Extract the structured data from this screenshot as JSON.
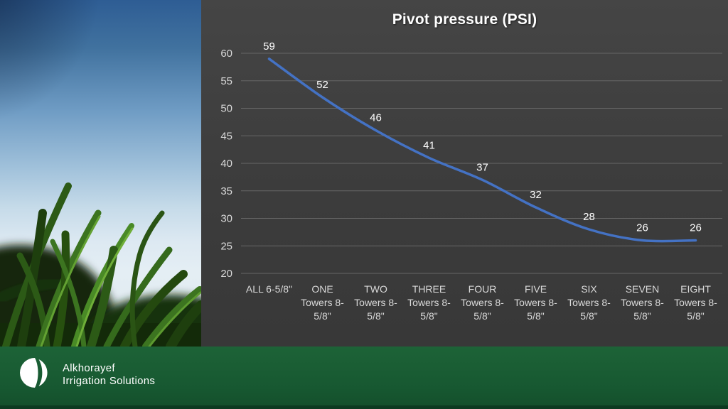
{
  "chart_data": {
    "type": "line",
    "title": "Pivot pressure (PSI)",
    "categories": [
      "ALL 6-5/8\"",
      "ONE Towers 8-5/8\"",
      "TWO Towers 8-5/8\"",
      "THREE Towers 8-5/8\"",
      "FOUR Towers 8-5/8\"",
      "FIVE Towers 8-5/8\"",
      "SIX Towers 8-5/8\"",
      "SEVEN Towers 8-5/8\"",
      "EIGHT Towers 8-5/8\""
    ],
    "category_lines": [
      [
        "ALL 6-5/8\""
      ],
      [
        "ONE",
        "Towers 8-",
        "5/8\""
      ],
      [
        "TWO",
        "Towers 8-",
        "5/8\""
      ],
      [
        "THREE",
        "Towers 8-",
        "5/8\""
      ],
      [
        "FOUR",
        "Towers 8-",
        "5/8\""
      ],
      [
        "FIVE",
        "Towers 8-",
        "5/8\""
      ],
      [
        "SIX",
        "Towers 8-",
        "5/8\""
      ],
      [
        "SEVEN",
        "Towers 8-",
        "5/8\""
      ],
      [
        "EIGHT",
        "Towers 8-",
        "5/8\""
      ]
    ],
    "values": [
      59,
      52,
      46,
      41,
      37,
      32,
      28,
      26,
      26
    ],
    "ylim": [
      20,
      60
    ],
    "yticks": [
      20,
      25,
      30,
      35,
      40,
      45,
      50,
      55,
      60
    ],
    "grid": true,
    "legend": "none",
    "line_color": "#4472c4",
    "data_label_color": "#ffffff",
    "axis_label_color": "#d9d9d9",
    "grid_color": "#666666",
    "background": "#3f3f3f"
  },
  "footer": {
    "brand_line1": "Alkhorayef",
    "brand_line2": "Irrigation Solutions"
  }
}
